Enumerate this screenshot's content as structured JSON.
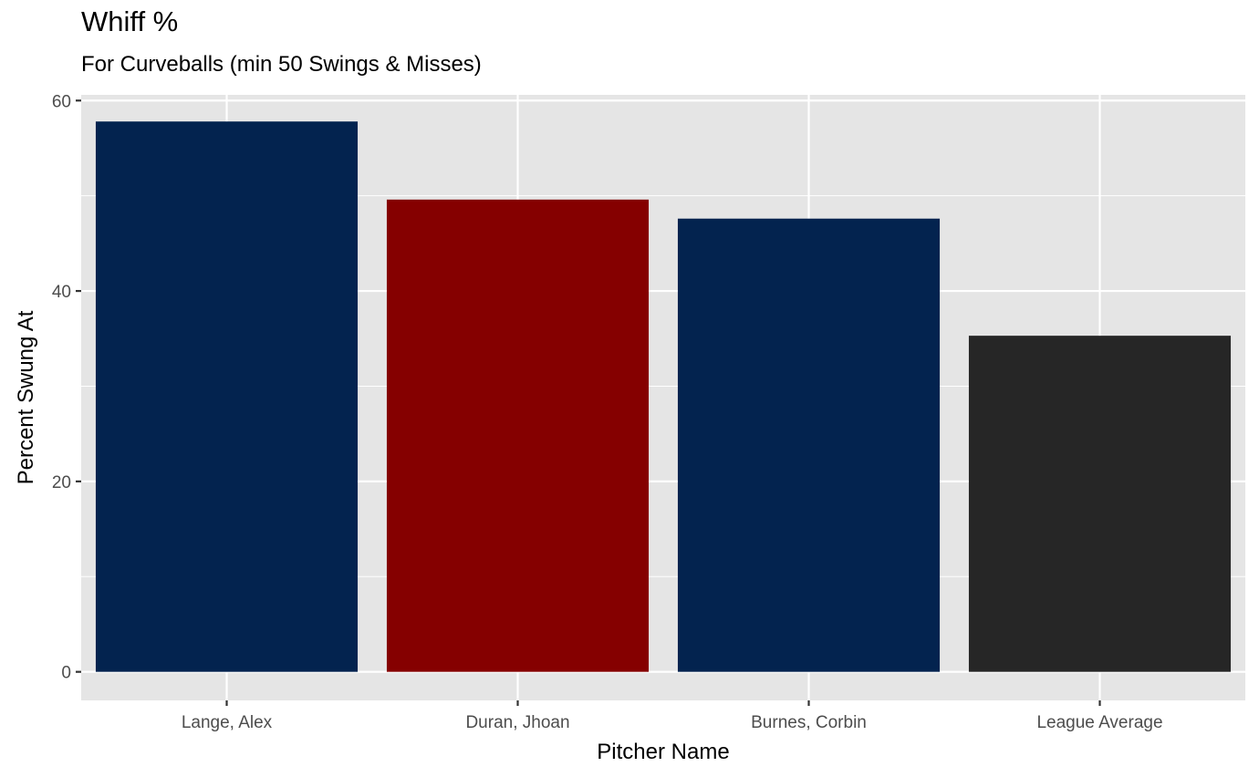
{
  "chart_data": {
    "type": "bar",
    "title": "Whiff %",
    "subtitle": "For Curveballs (min 50 Swings & Misses)",
    "xlabel": "Pitcher Name",
    "ylabel": "Percent Swung At",
    "categories": [
      "Lange, Alex",
      "Duran, Jhoan",
      "Burnes, Corbin",
      "League Average"
    ],
    "values": [
      57.8,
      49.6,
      47.6,
      35.3
    ],
    "bar_colors": [
      "#03234F",
      "#850000",
      "#03234F",
      "#262626"
    ],
    "ylim": [
      -3.0,
      60.6
    ],
    "yticks": [
      0,
      20,
      40,
      60
    ],
    "ytick_labels": [
      "0",
      "20",
      "40",
      "60"
    ],
    "grid": true,
    "panel_background": "#E5E5E5",
    "grid_color": "#FFFFFF"
  }
}
